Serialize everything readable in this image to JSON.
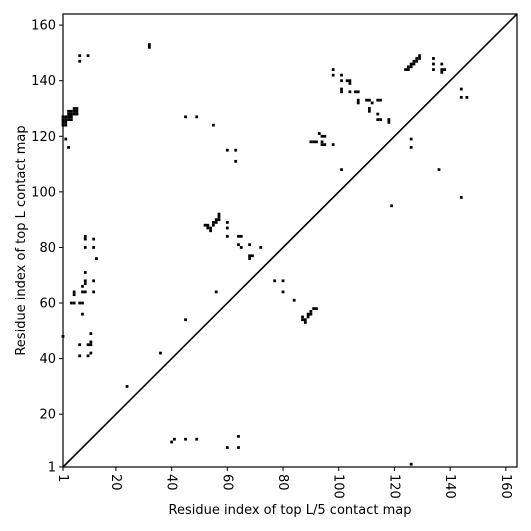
{
  "chart_data": {
    "type": "scatter",
    "title": "",
    "xlabel": "Residue index of top L/5 contact map",
    "ylabel": "Residue index of top L contact map",
    "xlim": [
      1,
      164
    ],
    "ylim": [
      1,
      164
    ],
    "xticks": [
      1,
      20,
      40,
      60,
      80,
      100,
      120,
      140,
      160
    ],
    "yticks": [
      1,
      20,
      40,
      60,
      80,
      100,
      120,
      140,
      160
    ],
    "grid": false,
    "diagonal": true,
    "marker": "square",
    "marker_color": "#000000",
    "series": [
      {
        "points": [
          [
            1,
            48
          ],
          [
            2,
            119
          ],
          [
            3,
            116
          ],
          [
            4,
            60
          ],
          [
            5,
            64
          ],
          [
            5,
            63
          ],
          [
            5,
            60
          ],
          [
            7,
            60
          ],
          [
            7,
            45
          ],
          [
            7,
            41
          ],
          [
            8,
            60
          ],
          [
            8,
            56
          ],
          [
            8,
            64
          ],
          [
            8,
            66
          ],
          [
            9,
            67
          ],
          [
            9,
            68
          ],
          [
            9,
            71
          ],
          [
            9,
            84
          ],
          [
            9,
            83
          ],
          [
            9,
            80
          ],
          [
            9,
            64
          ],
          [
            10,
            41
          ],
          [
            10,
            45
          ],
          [
            11,
            46
          ],
          [
            11,
            49
          ],
          [
            11,
            45
          ],
          [
            11,
            42
          ],
          [
            12,
            64
          ],
          [
            12,
            68
          ],
          [
            12,
            80
          ],
          [
            12,
            83
          ],
          [
            13,
            76
          ],
          [
            24,
            30
          ],
          [
            36,
            42
          ],
          [
            40,
            10
          ],
          [
            41,
            11
          ],
          [
            45,
            11
          ],
          [
            49,
            11
          ],
          [
            45,
            54
          ],
          [
            56,
            64
          ],
          [
            60,
            8
          ],
          [
            64,
            8
          ],
          [
            64,
            12
          ],
          [
            7,
            149
          ],
          [
            7,
            147
          ],
          [
            10,
            149
          ],
          [
            32,
            153
          ],
          [
            32,
            152
          ],
          [
            45,
            127
          ],
          [
            49,
            127
          ],
          [
            55,
            124
          ],
          [
            52,
            88
          ],
          [
            53,
            87
          ],
          [
            53,
            88
          ],
          [
            54,
            87
          ],
          [
            54,
            86
          ],
          [
            55,
            89
          ],
          [
            55,
            88
          ],
          [
            56,
            90
          ],
          [
            56,
            89
          ],
          [
            57,
            92
          ],
          [
            57,
            91
          ],
          [
            57,
            90
          ],
          [
            60,
            115
          ],
          [
            60,
            89
          ],
          [
            60,
            87
          ],
          [
            60,
            84
          ],
          [
            63,
            115
          ],
          [
            63,
            111
          ],
          [
            64,
            84
          ],
          [
            64,
            81
          ],
          [
            65,
            84
          ],
          [
            65,
            80
          ],
          [
            68,
            81
          ],
          [
            68,
            77
          ],
          [
            68,
            76
          ],
          [
            69,
            77
          ],
          [
            72,
            80
          ],
          [
            77,
            68
          ],
          [
            80,
            68
          ],
          [
            80,
            64
          ],
          [
            84,
            61
          ],
          [
            87,
            55
          ],
          [
            87,
            54
          ],
          [
            88,
            53
          ],
          [
            88,
            54
          ],
          [
            89,
            55
          ],
          [
            89,
            56
          ],
          [
            90,
            56
          ],
          [
            90,
            57
          ],
          [
            91,
            58
          ],
          [
            92,
            58
          ],
          [
            90,
            118
          ],
          [
            91,
            118
          ],
          [
            92,
            118
          ],
          [
            93,
            121
          ],
          [
            94,
            120
          ],
          [
            94,
            118
          ],
          [
            94,
            117
          ],
          [
            95,
            120
          ],
          [
            95,
            117
          ],
          [
            98,
            117
          ],
          [
            98,
            144
          ],
          [
            98,
            142
          ],
          [
            101,
            108
          ],
          [
            101,
            142
          ],
          [
            101,
            140
          ],
          [
            101,
            137
          ],
          [
            101,
            136
          ],
          [
            103,
            140
          ],
          [
            104,
            140
          ],
          [
            104,
            139
          ],
          [
            104,
            136
          ],
          [
            106,
            136
          ],
          [
            107,
            136
          ],
          [
            107,
            133
          ],
          [
            107,
            132
          ],
          [
            110,
            133
          ],
          [
            111,
            133
          ],
          [
            111,
            130
          ],
          [
            111,
            129
          ],
          [
            112,
            132
          ],
          [
            114,
            133
          ],
          [
            114,
            128
          ],
          [
            114,
            126
          ],
          [
            115,
            133
          ],
          [
            115,
            126
          ],
          [
            118,
            126
          ],
          [
            118,
            125
          ],
          [
            119,
            95
          ],
          [
            124,
            144
          ],
          [
            125,
            145
          ],
          [
            125,
            144
          ],
          [
            126,
            146
          ],
          [
            126,
            145
          ],
          [
            127,
            147
          ],
          [
            127,
            146
          ],
          [
            128,
            148
          ],
          [
            128,
            147
          ],
          [
            129,
            149
          ],
          [
            129,
            148
          ],
          [
            126,
            119
          ],
          [
            126,
            116
          ],
          [
            126,
            2
          ],
          [
            134,
            148
          ],
          [
            134,
            146
          ],
          [
            134,
            144
          ],
          [
            136,
            108
          ],
          [
            137,
            146
          ],
          [
            137,
            144
          ],
          [
            137,
            143
          ],
          [
            138,
            144
          ],
          [
            144,
            137
          ],
          [
            144,
            134
          ],
          [
            144,
            98
          ],
          [
            146,
            134
          ]
        ]
      },
      {
        "points": [
          [
            1,
            124
          ],
          [
            1,
            125
          ],
          [
            1,
            126
          ],
          [
            1,
            127
          ],
          [
            2,
            124
          ],
          [
            2,
            125
          ],
          [
            2,
            126
          ],
          [
            2,
            127
          ],
          [
            3,
            126
          ],
          [
            3,
            127
          ],
          [
            3,
            128
          ],
          [
            3,
            129
          ],
          [
            4,
            126
          ],
          [
            4,
            127
          ],
          [
            4,
            128
          ],
          [
            4,
            129
          ],
          [
            5,
            128
          ],
          [
            5,
            129
          ],
          [
            5,
            130
          ],
          [
            6,
            128
          ],
          [
            6,
            129
          ],
          [
            6,
            130
          ]
        ]
      }
    ]
  }
}
